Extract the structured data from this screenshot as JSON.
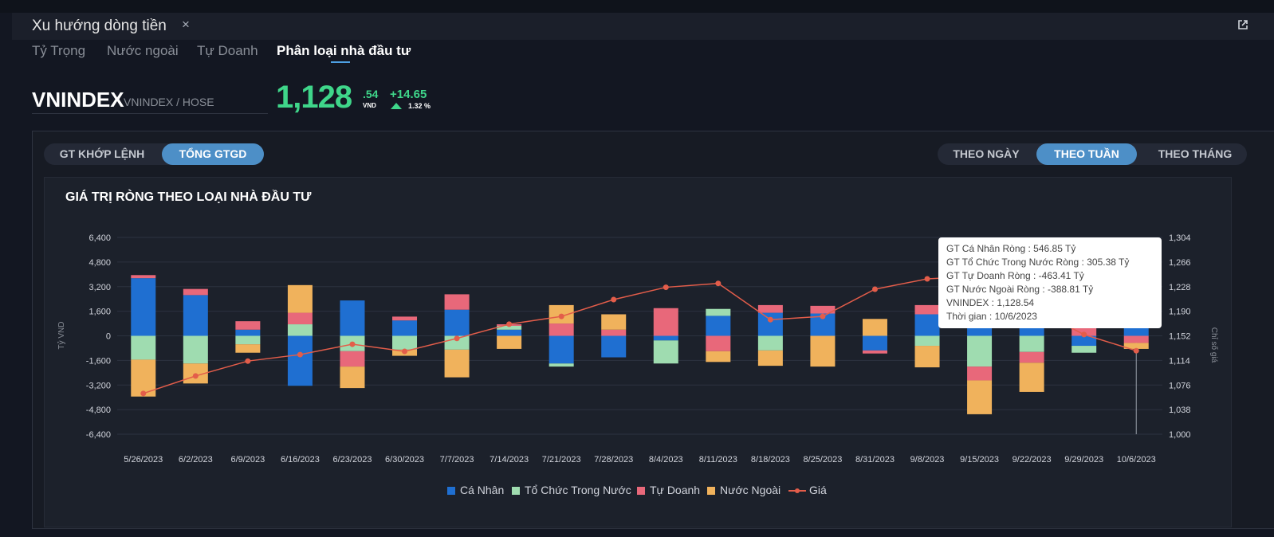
{
  "panel": {
    "title": "Xu hướng dòng tiền",
    "close_icon": "close-icon",
    "popout_icon": "external-link-icon"
  },
  "tabs": [
    {
      "label": "Tỷ Trọng"
    },
    {
      "label": "Nước ngoài"
    },
    {
      "label": "Tự Doanh"
    },
    {
      "label": "Phân loại nhà đầu tư",
      "active": true
    }
  ],
  "ticker": {
    "symbol": "VNINDEX",
    "exchange": "VNINDEX / HOSE",
    "price_int": "1,128",
    "price_dec": ".54",
    "currency": "VND",
    "change": "+14.65",
    "change_pct": "1.32 %",
    "color_up": "#3fd68a"
  },
  "value_toggle": [
    {
      "label": "GT KHỚP LỆNH"
    },
    {
      "label": "TỔNG GTGD",
      "active": true
    }
  ],
  "period_toggle": [
    {
      "label": "THEO NGÀY"
    },
    {
      "label": "THEO TUẦN",
      "active": true
    },
    {
      "label": "THEO THÁNG"
    }
  ],
  "tooltip": {
    "line1": "GT Cá Nhân Ròng  : 546.85 Tỷ",
    "line2": "GT Tổ Chức Trong Nước Ròng : 305.38 Tỷ",
    "line3": "GT Tự Doanh Ròng : -463.41 Tỷ",
    "line4": "GT Nước Ngoài Ròng : -388.81 Tỷ",
    "line5": "VNINDEX : 1,128.54",
    "line6": "Thời gian : 10/6/2023"
  },
  "chart_data": {
    "type": "bar",
    "stacked": true,
    "title": "GIÁ TRỊ RÒNG THEO LOẠI NHÀ ĐẦU TƯ",
    "ylabel": "Tỷ VND",
    "y2label": "Chỉ số giá",
    "ylim": [
      -6400,
      6400
    ],
    "yticks": [
      6400,
      4800,
      3200,
      1600,
      0,
      -1600,
      -3200,
      -4800,
      -6400
    ],
    "ytick_labels": [
      "6,400",
      "4,800",
      "3,200",
      "1,600",
      "0",
      "-1,600",
      "-3,200",
      "-4,800",
      "-6,400"
    ],
    "y2lim": [
      1000,
      1304
    ],
    "y2ticks": [
      1304,
      1266,
      1228,
      1190,
      1152,
      1114,
      1076,
      1038,
      1000
    ],
    "y2tick_labels": [
      "1,304",
      "1,266",
      "1,228",
      "1,190",
      "1,152",
      "1,114",
      "1,076",
      "1,038",
      "1,000"
    ],
    "grid": true,
    "legend": "bottom-center",
    "categories": [
      "5/26/2023",
      "6/2/2023",
      "6/9/2023",
      "6/16/2023",
      "6/23/2023",
      "6/30/2023",
      "7/7/2023",
      "7/14/2023",
      "7/21/2023",
      "7/28/2023",
      "8/4/2023",
      "8/11/2023",
      "8/18/2023",
      "8/25/2023",
      "8/31/2023",
      "9/8/2023",
      "9/15/2023",
      "9/22/2023",
      "9/29/2023",
      "10/6/2023"
    ],
    "series": [
      {
        "name": "Cá Nhân",
        "color": "#1f6fd1",
        "values": [
          3750,
          2650,
          400,
          -3250,
          2300,
          1000,
          1700,
          400,
          -1800,
          -1400,
          -300,
          1300,
          1500,
          1450,
          -950,
          1400,
          1300,
          1400,
          -650,
          547
        ]
      },
      {
        "name": "Tổ Chức Trong Nước",
        "color": "#9fdcb0",
        "values": [
          -1550,
          -1800,
          -550,
          750,
          -1000,
          -900,
          -900,
          250,
          -200,
          0,
          -1500,
          450,
          -950,
          0,
          0,
          -650,
          -2000,
          -1050,
          -450,
          305
        ]
      },
      {
        "name": "Tự Doanh",
        "color": "#e8687a",
        "values": [
          200,
          400,
          550,
          750,
          -1000,
          250,
          1000,
          100,
          800,
          400,
          1800,
          -1000,
          500,
          500,
          -200,
          600,
          -900,
          -700,
          500,
          -463
        ]
      },
      {
        "name": "Nước Ngoài",
        "color": "#f0b25c",
        "values": [
          -2400,
          -1300,
          -550,
          1800,
          -1400,
          -400,
          -1800,
          -850,
          1200,
          1000,
          0,
          -700,
          -1000,
          -2000,
          1100,
          -1400,
          -2200,
          -1900,
          0,
          -389
        ]
      }
    ],
    "line": {
      "name": "Giá",
      "color": "#e35d4a",
      "values": [
        1063,
        1090,
        1113,
        1123,
        1139,
        1128,
        1148,
        1170,
        1182,
        1208,
        1227,
        1233,
        1177,
        1182,
        1224,
        1240,
        1244,
        1196,
        1154,
        1129
      ]
    }
  }
}
